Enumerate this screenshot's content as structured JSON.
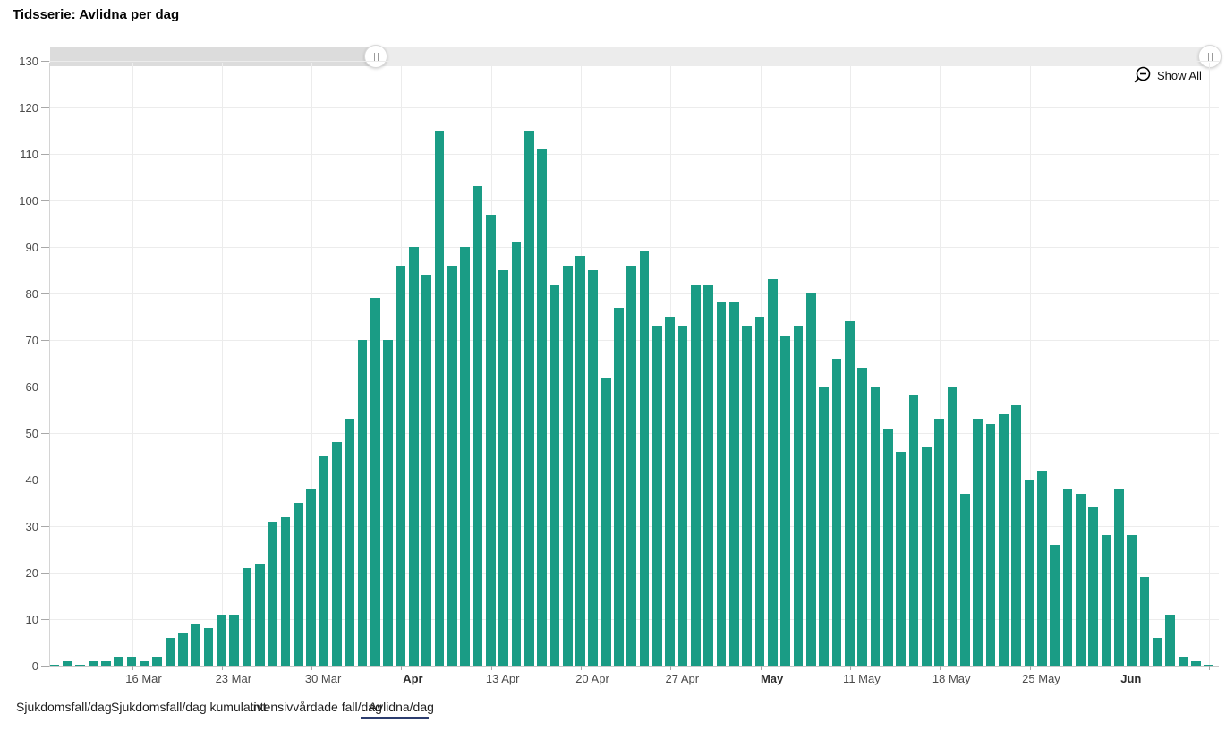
{
  "title": "Tidsserie: Avlidna per dag",
  "controls": {
    "show_all_label": "Show All"
  },
  "colors": {
    "bar": "#1a9c85",
    "active_tab_underline": "#2b3c6e",
    "scrollbar_track": "#ececec",
    "scrollbar_unselected": "#dcdcdc",
    "gridline": "#ececec",
    "axis_label": "#4a4a4a"
  },
  "tabs": [
    {
      "label": "Sjukdomsfall/dag",
      "active": false
    },
    {
      "label": "Sjukdomsfall/dag kumulativt",
      "active": false
    },
    {
      "label": "Intensivvårdade fall/dag",
      "active": false
    },
    {
      "label": "Avlidna/dag",
      "active": true
    }
  ],
  "chart_data": {
    "type": "bar",
    "title": "Tidsserie: Avlidna per dag",
    "xlabel": "",
    "ylabel": "",
    "ylim": [
      0,
      130
    ],
    "grid": "on",
    "bar_color": "#1a9c85",
    "y_ticks": [
      0,
      10,
      20,
      30,
      40,
      50,
      60,
      70,
      80,
      90,
      100,
      110,
      120,
      130
    ],
    "x_axis_labels": [
      {
        "label": "16 Mar",
        "bold": false
      },
      {
        "label": "23 Mar",
        "bold": false
      },
      {
        "label": "30 Mar",
        "bold": false
      },
      {
        "label": "Apr",
        "bold": true
      },
      {
        "label": "13 Apr",
        "bold": false
      },
      {
        "label": "20 Apr",
        "bold": false
      },
      {
        "label": "27 Apr",
        "bold": false
      },
      {
        "label": "May",
        "bold": true
      },
      {
        "label": "11 May",
        "bold": false
      },
      {
        "label": "18 May",
        "bold": false
      },
      {
        "label": "25 May",
        "bold": false
      },
      {
        "label": "Jun",
        "bold": true
      }
    ],
    "categories": [
      "8 Mar",
      "9 Mar",
      "10 Mar",
      "11 Mar",
      "12 Mar",
      "13 Mar",
      "14 Mar",
      "15 Mar",
      "16 Mar",
      "17 Mar",
      "18 Mar",
      "19 Mar",
      "20 Mar",
      "21 Mar",
      "22 Mar",
      "23 Mar",
      "24 Mar",
      "25 Mar",
      "26 Mar",
      "27 Mar",
      "28 Mar",
      "29 Mar",
      "30 Mar",
      "31 Mar",
      "1 Apr",
      "2 Apr",
      "3 Apr",
      "4 Apr",
      "5 Apr",
      "6 Apr",
      "7 Apr",
      "8 Apr",
      "9 Apr",
      "10 Apr",
      "11 Apr",
      "12 Apr",
      "13 Apr",
      "14 Apr",
      "15 Apr",
      "16 Apr",
      "17 Apr",
      "18 Apr",
      "19 Apr",
      "20 Apr",
      "21 Apr",
      "22 Apr",
      "23 Apr",
      "24 Apr",
      "25 Apr",
      "26 Apr",
      "27 Apr",
      "28 Apr",
      "29 Apr",
      "30 Apr",
      "1 May",
      "2 May",
      "3 May",
      "4 May",
      "5 May",
      "6 May",
      "7 May",
      "8 May",
      "9 May",
      "10 May",
      "11 May",
      "12 May",
      "13 May",
      "14 May",
      "15 May",
      "16 May",
      "17 May",
      "18 May",
      "19 May",
      "20 May",
      "21 May",
      "22 May",
      "23 May",
      "24 May",
      "25 May",
      "26 May",
      "27 May",
      "28 May",
      "29 May",
      "30 May",
      "31 May",
      "1 Jun",
      "2 Jun",
      "3 Jun",
      "4 Jun",
      "5 Jun",
      "6 Jun"
    ],
    "values": [
      0,
      1,
      0,
      1,
      1,
      2,
      2,
      1,
      2,
      6,
      7,
      9,
      8,
      11,
      11,
      21,
      22,
      31,
      32,
      35,
      38,
      45,
      48,
      53,
      70,
      79,
      70,
      86,
      90,
      84,
      115,
      86,
      90,
      103,
      97,
      85,
      91,
      115,
      111,
      82,
      86,
      88,
      85,
      62,
      77,
      86,
      89,
      73,
      75,
      73,
      82,
      82,
      78,
      78,
      73,
      75,
      83,
      71,
      73,
      80,
      60,
      66,
      74,
      64,
      60,
      51,
      46,
      58,
      47,
      53,
      60,
      37,
      53,
      52,
      54,
      56,
      40,
      42,
      26,
      38,
      37,
      34,
      28,
      38,
      28,
      19,
      6,
      11,
      2,
      1,
      0
    ]
  }
}
